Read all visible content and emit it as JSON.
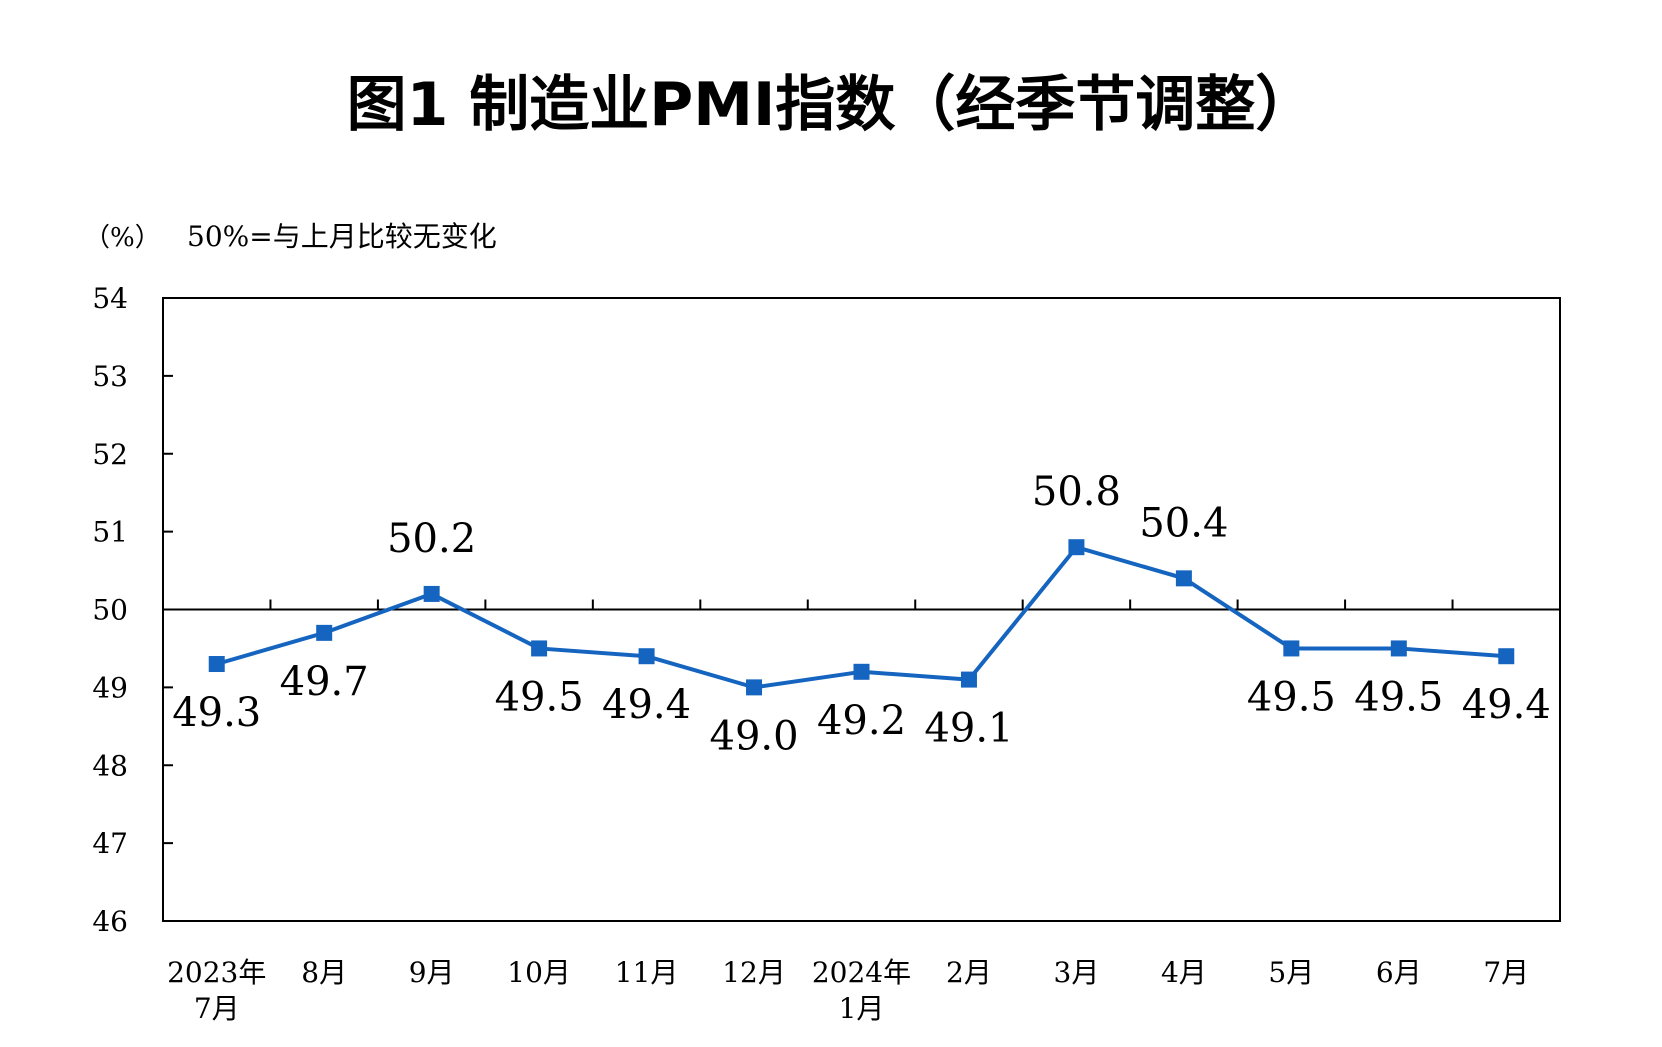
{
  "chart_data": {
    "type": "line",
    "title": "图1  制造业PMI指数（经季节调整）",
    "unit": "（%）",
    "note": "50%=与上月比较无变化",
    "categories": [
      [
        "2023年",
        "7月"
      ],
      [
        "8月"
      ],
      [
        "9月"
      ],
      [
        "10月"
      ],
      [
        "11月"
      ],
      [
        "12月"
      ],
      [
        "2024年",
        "1月"
      ],
      [
        "2月"
      ],
      [
        "3月"
      ],
      [
        "4月"
      ],
      [
        "5月"
      ],
      [
        "6月"
      ],
      [
        "7月"
      ]
    ],
    "series": [
      {
        "values": [
          49.3,
          49.7,
          50.2,
          49.5,
          49.4,
          49.0,
          49.2,
          49.1,
          50.8,
          50.4,
          49.5,
          49.5,
          49.4
        ],
        "labels": [
          "49.3",
          "49.7",
          "50.2",
          "49.5",
          "49.4",
          "49.0",
          "49.2",
          "49.1",
          "50.8",
          "50.4",
          "49.5",
          "49.5",
          "49.4"
        ],
        "label_position": [
          "below",
          "below",
          "above",
          "below",
          "below",
          "below",
          "below",
          "below",
          "above",
          "above",
          "below",
          "below",
          "below"
        ],
        "color": "#1565c0"
      }
    ],
    "ylim": [
      46,
      54
    ],
    "yticks": [
      "46",
      "47",
      "48",
      "49",
      "50",
      "51",
      "52",
      "53",
      "54"
    ],
    "reference_line": 50,
    "grid": false
  }
}
